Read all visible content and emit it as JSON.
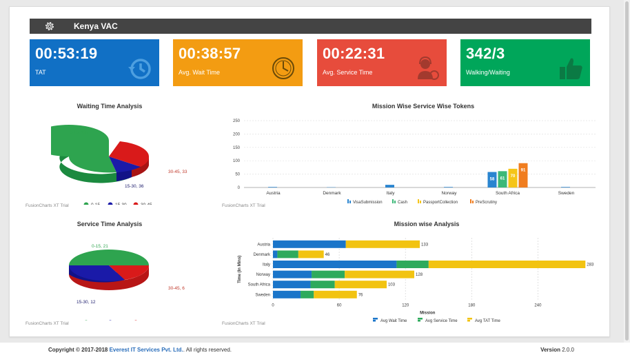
{
  "header": {
    "title": "Kenya VAC"
  },
  "cards": [
    {
      "value": "00:53:19",
      "label": "TAT",
      "color": "#1170c5"
    },
    {
      "value": "00:38:57",
      "label": "Avg. Wait Time",
      "color": "#f39c12"
    },
    {
      "value": "00:22:31",
      "label": "Avg. Service Time",
      "color": "#e74c3c"
    },
    {
      "value": "342/3",
      "label": "Walking/Waiting",
      "color": "#00a65a"
    }
  ],
  "waiting_pie": {
    "title": "Waiting Time Analysis",
    "labels": [
      "0-15, 137",
      "15-30, 36",
      "30-45, 33"
    ],
    "legend": [
      "0-15",
      "15-30",
      "30-45"
    ],
    "trial": "FusionCharts XT Trial"
  },
  "service_pie": {
    "title": "Service Time Analysis",
    "labels": [
      "0-15, 21",
      "15-30, 12",
      "30-45, 6"
    ],
    "legend": [
      "0-15",
      "15-30",
      "30-45"
    ],
    "trial": "FusionCharts XT Trial"
  },
  "tokens_chart": {
    "title": "Mission Wise Service Wise Tokens",
    "trial": "FusionCharts XT Trial",
    "y_ticks": [
      "250",
      "200",
      "150",
      "100",
      "50",
      "0"
    ],
    "legend": [
      "VisaSubmission",
      "Cash",
      "PassportCollection",
      "PreScrutiny"
    ]
  },
  "mission_chart": {
    "title": "Mission wise Analysis",
    "ylabel": "Time (In Mins)",
    "xlabel": "Mission",
    "x_ticks": [
      "0",
      "60",
      "120",
      "180",
      "240"
    ],
    "legend": [
      "Avg Wait Time",
      "Avg Service Time",
      "Avg TAT Time"
    ],
    "trial": "FusionCharts XT Trial"
  },
  "chart_data": [
    {
      "type": "pie",
      "title": "Waiting Time Analysis",
      "categories": [
        "0-15",
        "15-30",
        "30-45"
      ],
      "values": [
        137,
        36,
        33
      ],
      "colors": [
        "#2ea44f",
        "#1a1aa8",
        "#d91a1a"
      ]
    },
    {
      "type": "pie",
      "title": "Service Time Analysis",
      "categories": [
        "0-15",
        "15-30",
        "30-45"
      ],
      "values": [
        21,
        12,
        6
      ],
      "colors": [
        "#2ea44f",
        "#1a1aa8",
        "#d91a1a"
      ]
    },
    {
      "type": "bar",
      "title": "Mission Wise Service Wise Tokens",
      "categories": [
        "Austria",
        "Denmark",
        "Italy",
        "Norway",
        "South Africa",
        "Sweden"
      ],
      "ylim": [
        0,
        250
      ],
      "series": [
        {
          "name": "VisaSubmission",
          "values": [
            2,
            1,
            10,
            2,
            58,
            2
          ],
          "color": "#2a85d0"
        },
        {
          "name": "Cash",
          "values": [
            0,
            0,
            0,
            0,
            61,
            0
          ],
          "color": "#3cb878"
        },
        {
          "name": "PassportCollection",
          "values": [
            0,
            0,
            0,
            0,
            70,
            0
          ],
          "color": "#f5c518"
        },
        {
          "name": "PreScrutiny",
          "values": [
            0,
            0,
            0,
            0,
            91,
            0
          ],
          "color": "#f07d1f"
        }
      ],
      "data_labels": [
        {
          "category": "South Africa",
          "values": [
            "58",
            "61",
            "70",
            "91"
          ]
        }
      ]
    },
    {
      "type": "bar",
      "orientation": "horizontal",
      "stacked": true,
      "title": "Mission wise Analysis",
      "xlabel": "Mission",
      "ylabel": "Time (In Mins)",
      "categories": [
        "Austria",
        "Denmark",
        "Italy",
        "Norway",
        "South Africa",
        "Sweden"
      ],
      "xlim": [
        0,
        283
      ],
      "series": [
        {
          "name": "Avg Wait Time",
          "values": [
            66,
            4,
            112,
            35,
            34,
            25
          ],
          "color": "#1a75c9"
        },
        {
          "name": "Avg Service Time",
          "values": [
            0,
            19,
            29,
            30,
            22,
            12
          ],
          "color": "#2eaa5c"
        },
        {
          "name": "Avg TAT Time",
          "values": [
            67,
            23,
            142,
            63,
            47,
            39
          ],
          "color": "#f2c311"
        }
      ],
      "totals": [
        "133",
        "46",
        "283",
        "128",
        "103",
        "76"
      ]
    }
  ],
  "footer": {
    "copyright_prefix": "Copyright © 2017-2018 ",
    "company": "Everest IT Services Pvt. Ltd.",
    "rights": ". All rights reserved.",
    "version_label": "Version",
    "version_number": "2.0.0"
  }
}
